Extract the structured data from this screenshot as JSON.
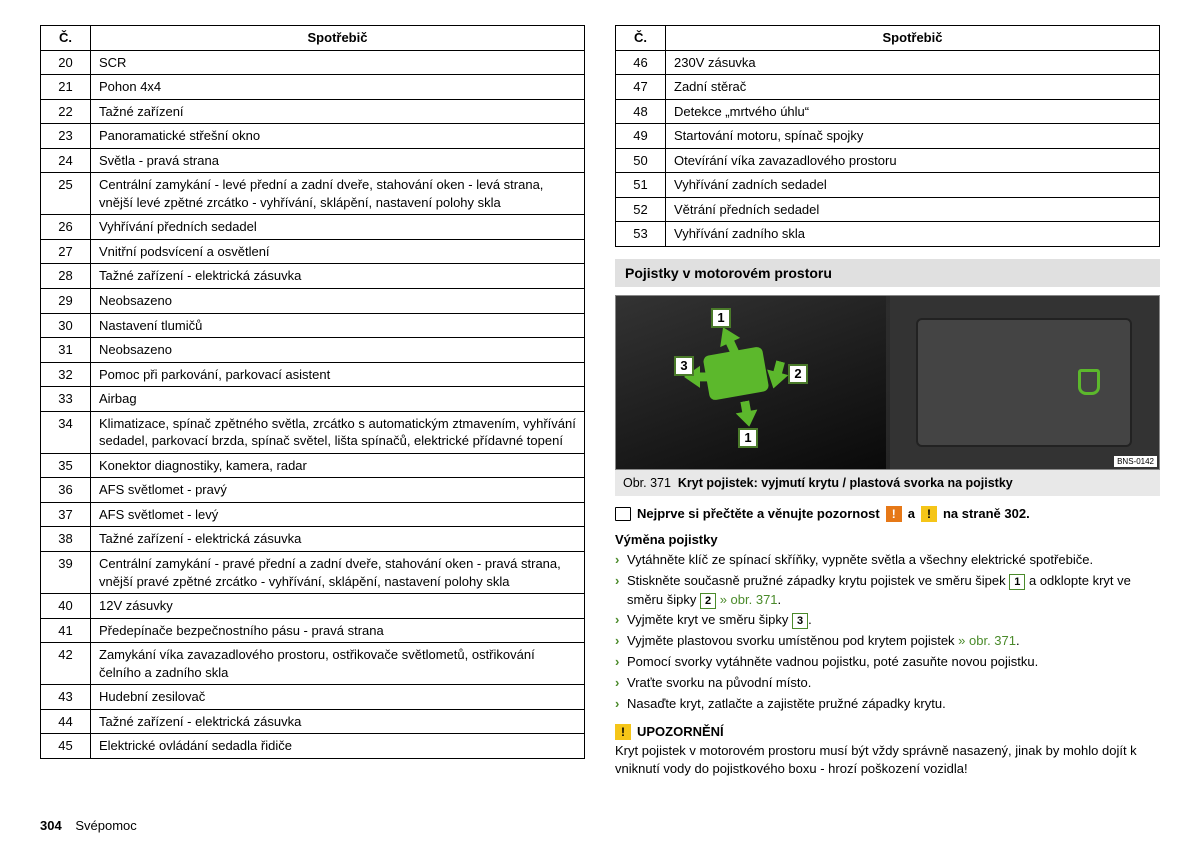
{
  "left_table": {
    "header_num": "Č.",
    "header_name": "Spotřebič",
    "rows": [
      [
        "20",
        "SCR"
      ],
      [
        "21",
        "Pohon 4x4"
      ],
      [
        "22",
        "Tažné zařízení"
      ],
      [
        "23",
        "Panoramatické střešní okno"
      ],
      [
        "24",
        "Světla - pravá strana"
      ],
      [
        "25",
        "Centrální zamykání - levé přední a zadní dveře, stahování oken - levá strana, vnější levé zpětné zrcátko - vyhřívání, sklápění, nastavení polohy skla"
      ],
      [
        "26",
        "Vyhřívání předních sedadel"
      ],
      [
        "27",
        "Vnitřní podsvícení a osvětlení"
      ],
      [
        "28",
        "Tažné zařízení - elektrická zásuvka"
      ],
      [
        "29",
        "Neobsazeno"
      ],
      [
        "30",
        "Nastavení tlumičů"
      ],
      [
        "31",
        "Neobsazeno"
      ],
      [
        "32",
        "Pomoc při parkování, parkovací asistent"
      ],
      [
        "33",
        "Airbag"
      ],
      [
        "34",
        "Klimatizace, spínač zpětného světla, zrcátko s automatickým ztmavením, vyhřívání sedadel, parkovací brzda, spínač světel, lišta spínačů, elektrické přídavné topení"
      ],
      [
        "35",
        "Konektor diagnostiky, kamera, radar"
      ],
      [
        "36",
        "AFS světlomet - pravý"
      ],
      [
        "37",
        "AFS světlomet - levý"
      ],
      [
        "38",
        "Tažné zařízení - elektrická zásuvka"
      ],
      [
        "39",
        "Centrální zamykání - pravé přední a zadní dveře, stahování oken - pravá strana, vnější pravé zpětné zrcátko - vyhřívání, sklápění, nastavení polohy skla"
      ],
      [
        "40",
        "12V zásuvky"
      ],
      [
        "41",
        "Předepínače bezpečnostního pásu - pravá strana"
      ],
      [
        "42",
        "Zamykání víka zavazadlového prostoru, ostřikovače světlometů, ostřikování čelního a zadního skla"
      ],
      [
        "43",
        "Hudební zesilovač"
      ],
      [
        "44",
        "Tažné zařízení - elektrická zásuvka"
      ],
      [
        "45",
        "Elektrické ovládání sedadla řidiče"
      ]
    ]
  },
  "right_table": {
    "header_num": "Č.",
    "header_name": "Spotřebič",
    "rows": [
      [
        "46",
        "230V zásuvka"
      ],
      [
        "47",
        "Zadní stěrač"
      ],
      [
        "48",
        "Detekce „mrtvého úhlu“"
      ],
      [
        "49",
        "Startování motoru, spínač spojky"
      ],
      [
        "50",
        "Otevírání víka zavazadlového prostoru"
      ],
      [
        "51",
        "Vyhřívání zadních sedadel"
      ],
      [
        "52",
        "Větrání předních sedadel"
      ],
      [
        "53",
        "Vyhřívání zadního skla"
      ]
    ]
  },
  "section_title": "Pojistky v motorovém prostoru",
  "figure": {
    "markers": {
      "m1": "1",
      "m2": "2",
      "m3": "3",
      "m1b": "1"
    },
    "code": "BNS-0142"
  },
  "caption": {
    "prefix": "Obr. 371",
    "text": "Kryt pojistek: vyjmutí krytu / plastová svorka na pojistky"
  },
  "readfirst": {
    "pre": "Nejprve si přečtěte a věnujte pozornost",
    "and": "a",
    "post": "na straně 302."
  },
  "subhead": "Výměna pojistky",
  "bullets": {
    "b1": "Vytáhněte klíč ze spínací skříňky, vypněte světla a všechny elektrické spotřebiče.",
    "b2a": "Stiskněte současně pružné západky krytu pojistek ve směru šipek ",
    "b2_box1": "1",
    "b2b": " a odklopte kryt ve směru šipky ",
    "b2_box2": "2",
    "b2_ref": " » obr. 371",
    "b3a": "Vyjměte kryt ve směru šipky ",
    "b3_box": "3",
    "b4a": "Vyjměte plastovou svorku umístěnou pod krytem pojistek ",
    "b4_ref": "» obr. 371",
    "b5": "Pomocí svorky vytáhněte vadnou pojistku, poté zasuňte novou pojistku.",
    "b6": "Vraťte svorku na původní místo.",
    "b7": "Nasaďte kryt, zatlačte a zajistěte pružné západky krytu."
  },
  "notice": {
    "title": "UPOZORNĚNÍ",
    "body": "Kryt pojistek v motorovém prostoru musí být vždy správně nasazený, jinak by mohlo dojít k vniknutí vody do pojistkového boxu - hrozí poškození vozidla!"
  },
  "footer": {
    "page": "304",
    "section": "Svépomoc"
  }
}
